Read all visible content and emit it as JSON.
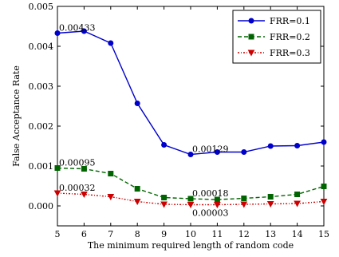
{
  "chart_data": {
    "type": "line",
    "xlabel": "The minimum required length of random code",
    "ylabel": "False Acceptance Rate",
    "xlim": [
      5,
      15
    ],
    "ylim": [
      -0.0005,
      0.005
    ],
    "x": [
      5,
      6,
      7,
      8,
      9,
      10,
      11,
      12,
      13,
      14,
      15
    ],
    "x_ticks": [
      "5",
      "6",
      "7",
      "8",
      "9",
      "10",
      "11",
      "12",
      "13",
      "14",
      "15"
    ],
    "y_ticks": [
      "0.000",
      "0.001",
      "0.002",
      "0.003",
      "0.004",
      "0.005"
    ],
    "grid": false,
    "legend_position": "top-right",
    "series": [
      {
        "name": "FRR=0.1",
        "color": "#0000cc",
        "line_style": "solid",
        "marker": "circle",
        "values": [
          0.00433,
          0.00438,
          0.00408,
          0.00257,
          0.00153,
          0.00129,
          0.00135,
          0.00135,
          0.0015,
          0.00151,
          0.0016
        ]
      },
      {
        "name": "FRR=0.2",
        "color": "#006400",
        "line_style": "dashed",
        "marker": "square",
        "values": [
          0.00095,
          0.00093,
          0.00081,
          0.00043,
          0.00021,
          0.00018,
          0.00016,
          0.00019,
          0.00023,
          0.00029,
          0.00049
        ]
      },
      {
        "name": "FRR=0.3",
        "color": "#cc0000",
        "line_style": "dashdot",
        "marker": "triangle-down",
        "values": [
          0.00032,
          0.00029,
          0.00023,
          0.00011,
          4e-05,
          3e-05,
          3e-05,
          4e-05,
          5e-05,
          6e-05,
          0.00011
        ]
      }
    ],
    "annotations": [
      {
        "text": "0.00433",
        "x": 5,
        "y": 0.00433
      },
      {
        "text": "0.00129",
        "x": 10,
        "y": 0.00129
      },
      {
        "text": "0.00095",
        "x": 5,
        "y": 0.00095
      },
      {
        "text": "0.00018",
        "x": 10,
        "y": 0.00018
      },
      {
        "text": "0.00032",
        "x": 5,
        "y": 0.00032
      },
      {
        "text": "0.00003",
        "x": 10,
        "y": 3e-05
      }
    ]
  }
}
